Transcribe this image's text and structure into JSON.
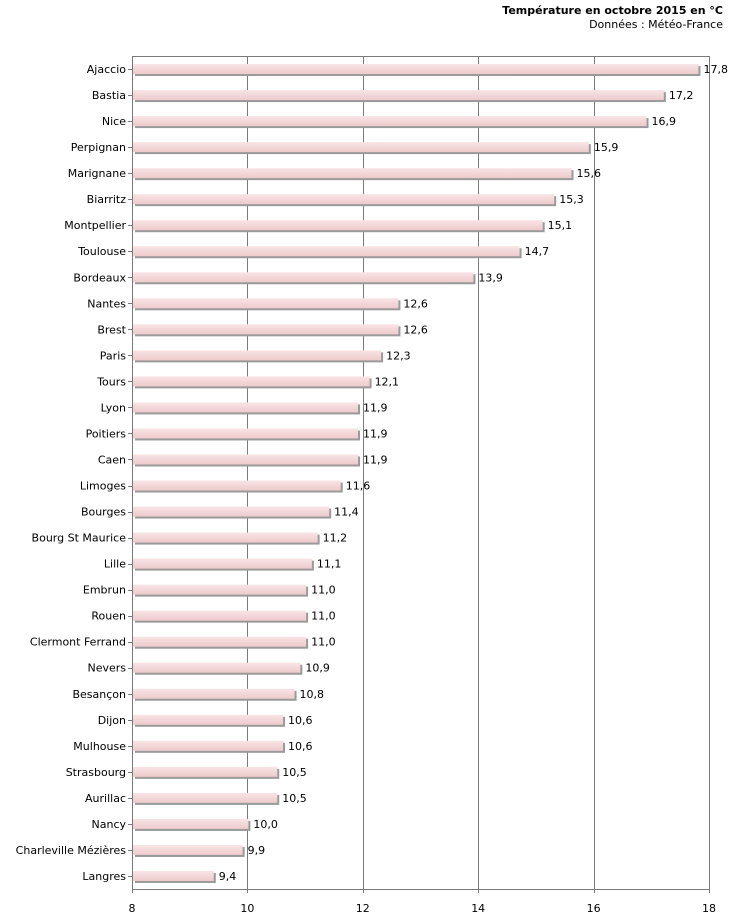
{
  "chart_data": {
    "type": "bar",
    "orientation": "horizontal",
    "title": "Température en octobre 2015 en °C",
    "subtitle": "Données : Météo-France",
    "xlabel": "",
    "ylabel": "",
    "xlim": [
      8,
      18
    ],
    "xticks": [
      8,
      10,
      12,
      14,
      16,
      18
    ],
    "bar_color": "#f2d4d6",
    "categories": [
      "Ajaccio",
      "Bastia",
      "Nice",
      "Perpignan",
      "Marignane",
      "Biarritz",
      "Montpellier",
      "Toulouse",
      "Bordeaux",
      "Nantes",
      "Brest",
      "Paris",
      "Tours",
      "Lyon",
      "Poitiers",
      "Caen",
      "Limoges",
      "Bourges",
      "Bourg St Maurice",
      "Lille",
      "Embrun",
      "Rouen",
      "Clermont Ferrand",
      "Nevers",
      "Besançon",
      "Dijon",
      "Mulhouse",
      "Strasbourg",
      "Aurillac",
      "Nancy",
      "Charleville Mézières",
      "Langres"
    ],
    "values": [
      17.8,
      17.2,
      16.9,
      15.9,
      15.6,
      15.3,
      15.1,
      14.7,
      13.9,
      12.6,
      12.6,
      12.3,
      12.1,
      11.9,
      11.9,
      11.9,
      11.6,
      11.4,
      11.2,
      11.1,
      11.0,
      11.0,
      11.0,
      10.9,
      10.8,
      10.6,
      10.6,
      10.5,
      10.5,
      10.0,
      9.9,
      9.4
    ],
    "value_labels": [
      "17,8",
      "17,2",
      "16,9",
      "15,9",
      "15,6",
      "15,3",
      "15,1",
      "14,7",
      "13,9",
      "12,6",
      "12,6",
      "12,3",
      "12,1",
      "11,9",
      "11,9",
      "11,9",
      "11,6",
      "11,4",
      "11,2",
      "11,1",
      "11,0",
      "11,0",
      "11,0",
      "10,9",
      "10,8",
      "10,6",
      "10,6",
      "10,5",
      "10,5",
      "10,0",
      "9,9",
      "9,4"
    ]
  }
}
